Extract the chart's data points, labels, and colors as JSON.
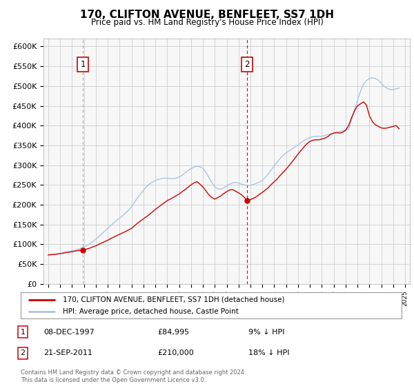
{
  "title": "170, CLIFTON AVENUE, BENFLEET, SS7 1DH",
  "subtitle": "Price paid vs. HM Land Registry's House Price Index (HPI)",
  "legend_line1": "170, CLIFTON AVENUE, BENFLEET, SS7 1DH (detached house)",
  "legend_line2": "HPI: Average price, detached house, Castle Point",
  "footnote": "Contains HM Land Registry data © Crown copyright and database right 2024.\nThis data is licensed under the Open Government Licence v3.0.",
  "annotation1_label": "1",
  "annotation1_date": "08-DEC-1997",
  "annotation1_price": "£84,995",
  "annotation1_hpi": "9% ↓ HPI",
  "annotation2_label": "2",
  "annotation2_date": "21-SEP-2011",
  "annotation2_price": "£210,000",
  "annotation2_hpi": "18% ↓ HPI",
  "sale1_x": 1997.92,
  "sale1_y": 84995,
  "sale2_x": 2011.72,
  "sale2_y": 210000,
  "ylim": [
    0,
    620000
  ],
  "xlim_left": 1994.6,
  "xlim_right": 2025.4,
  "yticks": [
    0,
    50000,
    100000,
    150000,
    200000,
    250000,
    300000,
    350000,
    400000,
    450000,
    500000,
    550000,
    600000
  ],
  "ytick_labels": [
    "£0",
    "£50K",
    "£100K",
    "£150K",
    "£200K",
    "£250K",
    "£300K",
    "£350K",
    "£400K",
    "£450K",
    "£500K",
    "£550K",
    "£600K"
  ],
  "plot_bg_color": "#f7f7f7",
  "grid_color": "#cccccc",
  "hpi_color": "#aac4e0",
  "price_color": "#cc0000",
  "dashed1_color": "#aaaaaa",
  "dashed2_color": "#cc0000",
  "box_label_color": "#cc0000",
  "hpi_data_x": [
    1995.0,
    1995.25,
    1995.5,
    1995.75,
    1996.0,
    1996.25,
    1996.5,
    1996.75,
    1997.0,
    1997.25,
    1997.5,
    1997.75,
    1998.0,
    1998.25,
    1998.5,
    1998.75,
    1999.0,
    1999.25,
    1999.5,
    1999.75,
    2000.0,
    2000.25,
    2000.5,
    2000.75,
    2001.0,
    2001.25,
    2001.5,
    2001.75,
    2002.0,
    2002.25,
    2002.5,
    2002.75,
    2003.0,
    2003.25,
    2003.5,
    2003.75,
    2004.0,
    2004.25,
    2004.5,
    2004.75,
    2005.0,
    2005.25,
    2005.5,
    2005.75,
    2006.0,
    2006.25,
    2006.5,
    2006.75,
    2007.0,
    2007.25,
    2007.5,
    2007.75,
    2008.0,
    2008.25,
    2008.5,
    2008.75,
    2009.0,
    2009.25,
    2009.5,
    2009.75,
    2010.0,
    2010.25,
    2010.5,
    2010.75,
    2011.0,
    2011.25,
    2011.5,
    2011.75,
    2012.0,
    2012.25,
    2012.5,
    2012.75,
    2013.0,
    2013.25,
    2013.5,
    2013.75,
    2014.0,
    2014.25,
    2014.5,
    2014.75,
    2015.0,
    2015.25,
    2015.5,
    2015.75,
    2016.0,
    2016.25,
    2016.5,
    2016.75,
    2017.0,
    2017.25,
    2017.5,
    2017.75,
    2018.0,
    2018.25,
    2018.5,
    2018.75,
    2019.0,
    2019.25,
    2019.5,
    2019.75,
    2020.0,
    2020.25,
    2020.5,
    2020.75,
    2021.0,
    2021.25,
    2021.5,
    2021.75,
    2022.0,
    2022.25,
    2022.5,
    2022.75,
    2023.0,
    2023.25,
    2023.5,
    2023.75,
    2024.0,
    2024.25,
    2024.5
  ],
  "hpi_data_y": [
    72000,
    73000,
    74000,
    75000,
    76000,
    78000,
    80000,
    81000,
    83000,
    85000,
    87000,
    90000,
    93000,
    97000,
    101000,
    107000,
    113000,
    119000,
    126000,
    133000,
    140000,
    147000,
    154000,
    160000,
    166000,
    172000,
    179000,
    186000,
    195000,
    206000,
    217000,
    227000,
    236000,
    245000,
    252000,
    257000,
    261000,
    264000,
    266000,
    267000,
    267000,
    266000,
    266000,
    267000,
    270000,
    274000,
    280000,
    286000,
    291000,
    295000,
    297000,
    296000,
    292000,
    282000,
    269000,
    256000,
    245000,
    240000,
    239000,
    242000,
    247000,
    252000,
    255000,
    256000,
    255000,
    252000,
    250000,
    249000,
    249000,
    251000,
    254000,
    257000,
    261000,
    269000,
    278000,
    288000,
    298000,
    308000,
    317000,
    325000,
    331000,
    336000,
    341000,
    346000,
    351000,
    357000,
    362000,
    366000,
    370000,
    372000,
    373000,
    373000,
    373000,
    375000,
    377000,
    379000,
    381000,
    383000,
    385000,
    387000,
    389000,
    391000,
    414000,
    439000,
    464000,
    487000,
    504000,
    514000,
    519000,
    521000,
    519000,
    515000,
    507000,
    499000,
    494000,
    491000,
    491000,
    493000,
    495000
  ],
  "price_data_x": [
    1995.0,
    1995.5,
    1996.0,
    1996.5,
    1997.0,
    1997.5,
    1997.92,
    1998.5,
    1999.0,
    1999.5,
    2000.0,
    2000.5,
    2001.0,
    2001.5,
    2002.0,
    2002.5,
    2003.0,
    2003.5,
    2004.0,
    2004.5,
    2005.0,
    2005.5,
    2006.0,
    2006.5,
    2007.0,
    2007.25,
    2007.5,
    2007.75,
    2008.0,
    2008.25,
    2008.5,
    2008.75,
    2009.0,
    2009.25,
    2009.5,
    2009.75,
    2010.0,
    2010.25,
    2010.5,
    2010.75,
    2011.0,
    2011.25,
    2011.5,
    2011.72,
    2012.0,
    2012.25,
    2012.5,
    2012.75,
    2013.0,
    2013.25,
    2013.5,
    2013.75,
    2014.0,
    2014.25,
    2014.5,
    2014.75,
    2015.0,
    2015.25,
    2015.5,
    2015.75,
    2016.0,
    2016.25,
    2016.5,
    2016.75,
    2017.0,
    2017.25,
    2017.5,
    2017.75,
    2018.0,
    2018.25,
    2018.5,
    2018.75,
    2019.0,
    2019.25,
    2019.5,
    2019.75,
    2020.0,
    2020.25,
    2020.5,
    2020.75,
    2021.0,
    2021.25,
    2021.5,
    2021.75,
    2022.0,
    2022.25,
    2022.5,
    2022.75,
    2023.0,
    2023.25,
    2023.5,
    2023.75,
    2024.0,
    2024.25,
    2024.5
  ],
  "price_data_y": [
    73000,
    74000,
    76000,
    79000,
    81000,
    84000,
    84995,
    90000,
    96000,
    103000,
    110000,
    118000,
    125000,
    132000,
    140000,
    153000,
    164000,
    175000,
    188000,
    199000,
    210000,
    218000,
    227000,
    238000,
    250000,
    255000,
    258000,
    252000,
    245000,
    235000,
    225000,
    218000,
    214000,
    218000,
    222000,
    228000,
    233000,
    237000,
    238000,
    234000,
    230000,
    225000,
    218000,
    210000,
    213000,
    216000,
    220000,
    226000,
    231000,
    237000,
    243000,
    251000,
    258000,
    265000,
    274000,
    282000,
    290000,
    299000,
    308000,
    318000,
    328000,
    337000,
    346000,
    354000,
    360000,
    363000,
    364000,
    364000,
    366000,
    368000,
    372000,
    378000,
    381000,
    382000,
    381000,
    383000,
    388000,
    400000,
    420000,
    438000,
    450000,
    455000,
    460000,
    452000,
    425000,
    410000,
    402000,
    398000,
    394000,
    393000,
    394000,
    396000,
    398000,
    400000,
    392000
  ]
}
